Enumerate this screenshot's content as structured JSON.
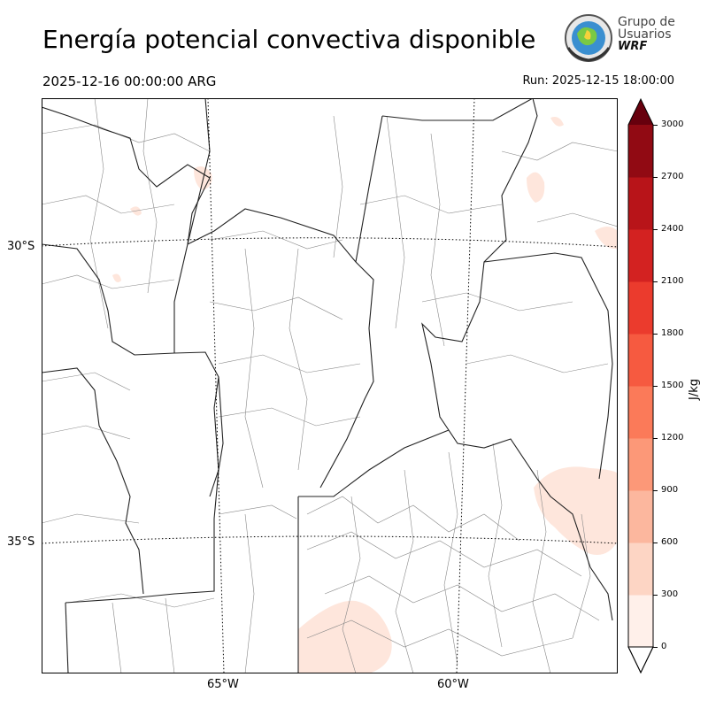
{
  "header": {
    "title": "Energía potencial convectiva disponible",
    "valid_time": "2025-12-16 00:00:00 ARG",
    "run_time": "Run: 2025-12-15 18:00:00"
  },
  "logo": {
    "line1": "Grupo de",
    "line2": "Usuarios",
    "line3": "WRF",
    "icon": "globe-seal-icon"
  },
  "map": {
    "latitude_labels": [
      "30°S",
      "35°S"
    ],
    "longitude_labels": [
      "65°W",
      "60°W"
    ],
    "background_color": "#ffffff",
    "border_color": "#000000"
  },
  "colorbar": {
    "unit_label": "J/kg",
    "ticks": [
      "0",
      "300",
      "600",
      "900",
      "1200",
      "1500",
      "1800",
      "2100",
      "2400",
      "2700",
      "3000"
    ],
    "colors": [
      "#fff0ea",
      "#fdd5c4",
      "#fcb79e",
      "#fc9878",
      "#fb7a59",
      "#f65a40",
      "#eb3b2d",
      "#d32221",
      "#b81419",
      "#910a13"
    ],
    "over_color": "#67000d",
    "under_color": "#ffffff"
  }
}
